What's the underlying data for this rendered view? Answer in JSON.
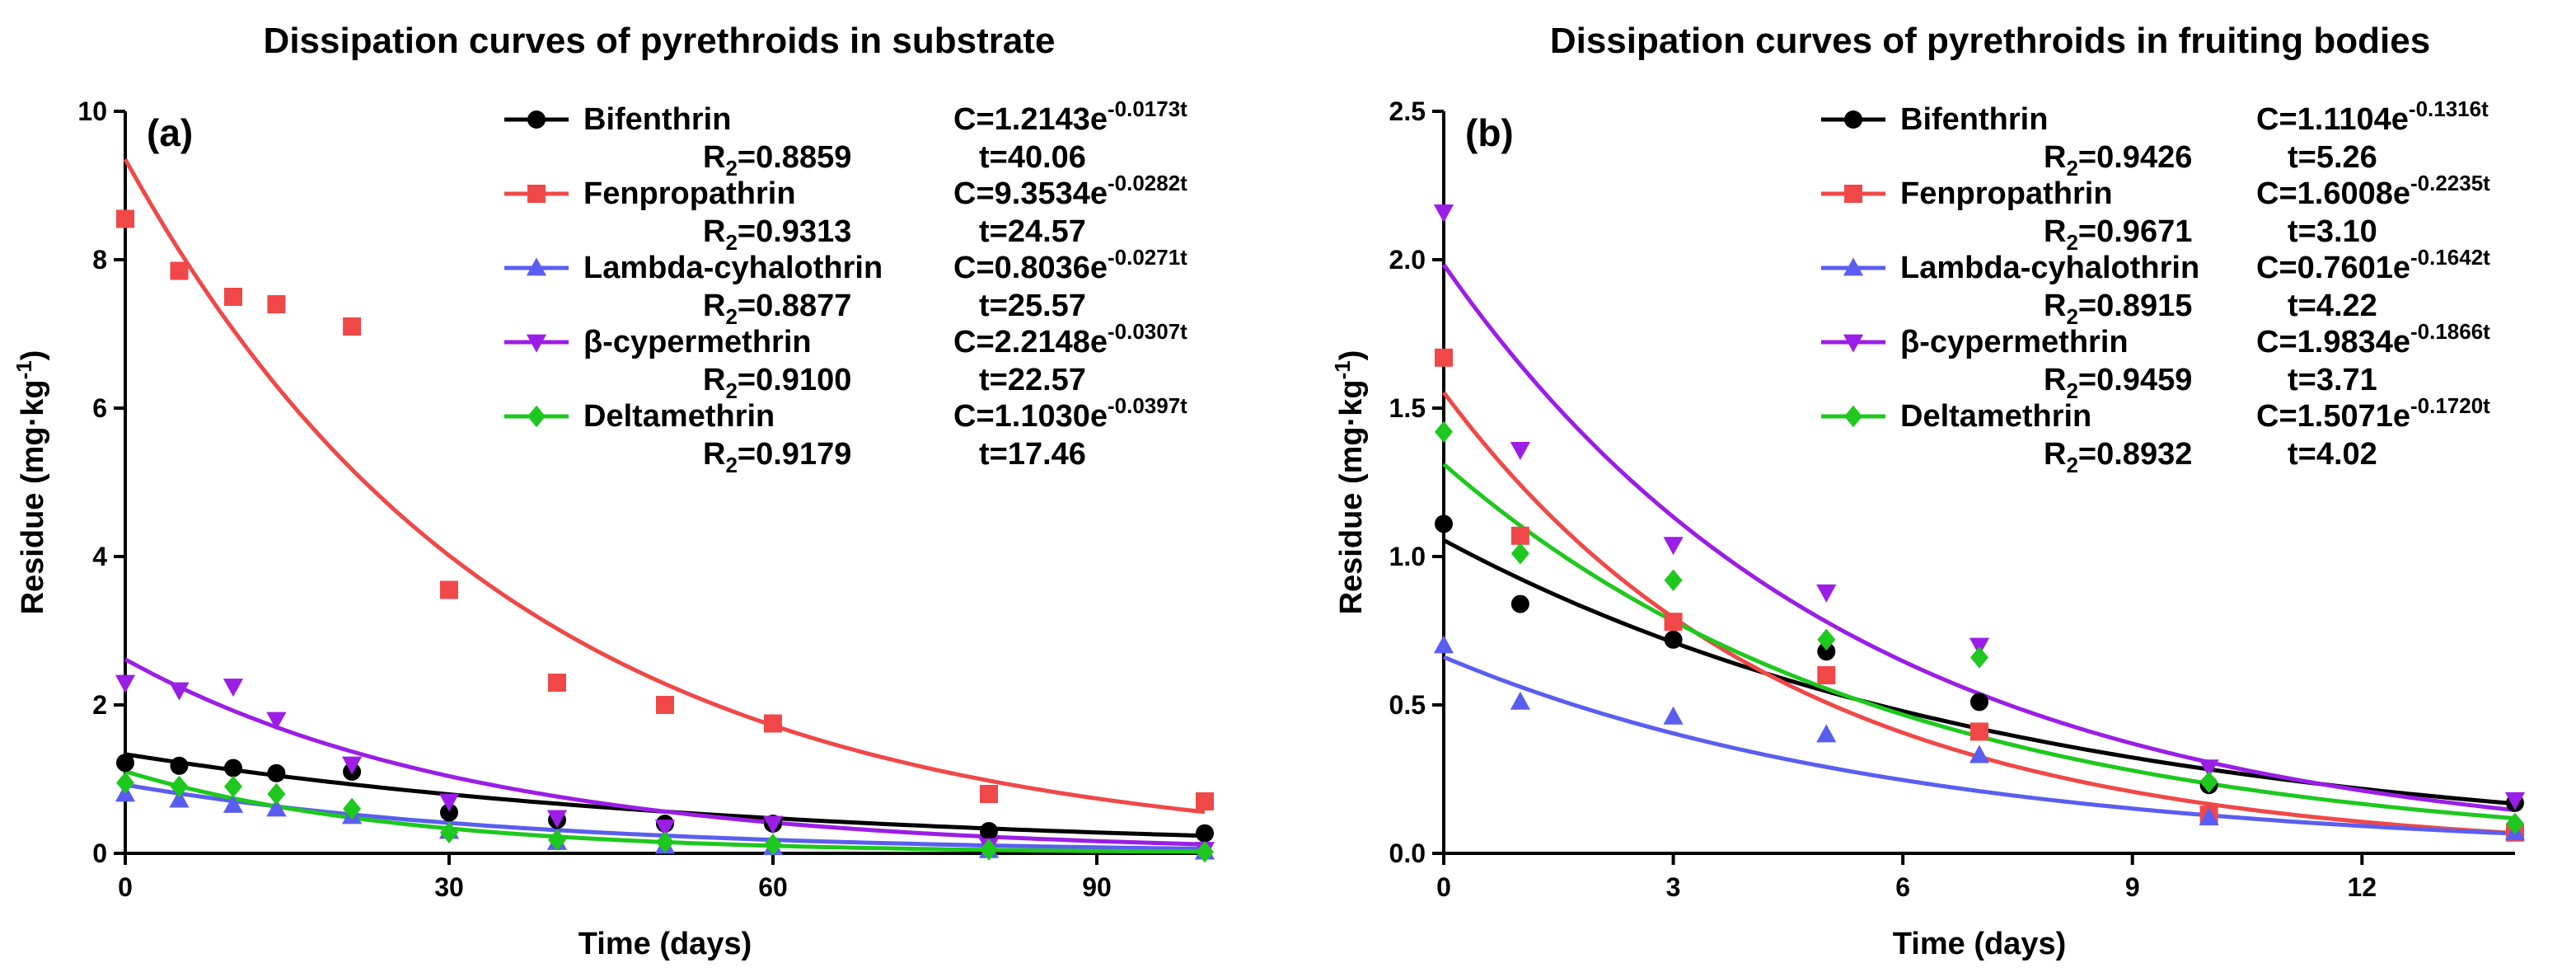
{
  "chart_data": [
    {
      "type": "scatter",
      "panel": "(a)",
      "title": "Dissipation curves of pyrethroids in substrate",
      "xlabel": "Time (days)",
      "ylabel_main": "Residue (mg·kg",
      "ylabel_sup": "-1",
      "ylabel_close": ")",
      "xlim": [
        0,
        100
      ],
      "ylim": [
        0,
        10
      ],
      "xticks": [
        0,
        30,
        60,
        90
      ],
      "yticks": [
        0,
        2,
        4,
        6,
        8,
        10
      ],
      "series": [
        {
          "name": "Bifenthrin",
          "color": "#000000",
          "marker": "circle",
          "eq_base": "C=1.2143e",
          "eq_exp": "-0.0173t",
          "r2_label": "R",
          "r2_sub": "2",
          "r2_value": "=0.8859",
          "half_life": "t=40.06",
          "c0": 1.2143,
          "k": 0.0173,
          "fit_scale": 1.1,
          "x": [
            0,
            5,
            10,
            14,
            21,
            30,
            40,
            50,
            60,
            80,
            100
          ],
          "y": [
            1.22,
            1.18,
            1.15,
            1.08,
            1.1,
            0.55,
            0.45,
            0.4,
            0.4,
            0.3,
            0.27
          ]
        },
        {
          "name": "Fenpropathrin",
          "color": "#f04848",
          "marker": "square",
          "eq_base": "C=9.3534e",
          "eq_exp": "-0.0282t",
          "r2_label": "R",
          "r2_sub": "2",
          "r2_value": "=0.9313",
          "half_life": "t=24.57",
          "c0": 9.3534,
          "k": 0.0282,
          "fit_scale": 1,
          "x": [
            0,
            5,
            10,
            14,
            21,
            30,
            40,
            50,
            60,
            80,
            100
          ],
          "y": [
            8.55,
            7.85,
            7.5,
            7.4,
            7.1,
            3.55,
            2.3,
            2.0,
            1.75,
            0.8,
            0.7
          ]
        },
        {
          "name": "Lambda-cyhalothrin",
          "color": "#5a5ef0",
          "marker": "triangle-up",
          "eq_base": "C=0.8036e",
          "eq_exp": "-0.0271t",
          "r2_label": "R",
          "r2_sub": "2",
          "r2_value": "=0.8877",
          "half_life": "t=25.57",
          "c0": 0.8036,
          "k": 0.0271,
          "fit_scale": 1.15,
          "x": [
            0,
            5,
            10,
            14,
            21,
            30,
            40,
            50,
            60,
            80,
            100
          ],
          "y": [
            0.8,
            0.72,
            0.65,
            0.6,
            0.5,
            0.3,
            0.15,
            0.1,
            0.08,
            0.04,
            0.02
          ]
        },
        {
          "name": "β-cypermethrin",
          "color": "#9b1ee6",
          "marker": "triangle-down",
          "eq_base": "C=2.2148e",
          "eq_exp": "-0.0307t",
          "r2_label": "R",
          "r2_sub": "2",
          "r2_value": "=0.9100",
          "half_life": "t=22.57",
          "c0": 2.2148,
          "k": 0.0307,
          "fit_scale": 1.18,
          "x": [
            0,
            5,
            10,
            14,
            21,
            30,
            40,
            50,
            60,
            80,
            100
          ],
          "y": [
            2.3,
            2.2,
            2.25,
            1.8,
            1.2,
            0.7,
            0.48,
            0.35,
            0.4,
            0.1,
            0.05
          ]
        },
        {
          "name": "Deltamethrin",
          "color": "#1ec81e",
          "marker": "diamond",
          "eq_base": "C=1.1030e",
          "eq_exp": "-0.0397t",
          "r2_label": "R",
          "r2_sub": "2",
          "r2_value": "=0.9179",
          "half_life": "t=17.46",
          "c0": 1.103,
          "k": 0.0397,
          "fit_scale": 1,
          "x": [
            0,
            5,
            10,
            14,
            21,
            30,
            40,
            50,
            60,
            80,
            100
          ],
          "y": [
            0.95,
            0.9,
            0.9,
            0.8,
            0.6,
            0.28,
            0.18,
            0.15,
            0.12,
            0.05,
            0.02
          ]
        }
      ]
    },
    {
      "type": "scatter",
      "panel": "(b)",
      "title": "Dissipation curves of pyrethroids in fruiting bodies",
      "xlabel": "Time (days)",
      "ylabel_main": "Residue (mg·kg",
      "ylabel_sup": "-1",
      "ylabel_close": ")",
      "xlim": [
        0,
        14
      ],
      "ylim": [
        0,
        2.5
      ],
      "xticks": [
        0,
        3,
        6,
        9,
        12
      ],
      "yticks": [
        0,
        0.5,
        1.0,
        1.5,
        2.0,
        2.5
      ],
      "ytick_labels": [
        "0.0",
        "0.5",
        "1.0",
        "1.5",
        "2.0",
        "2.5"
      ],
      "series": [
        {
          "name": "Bifenthrin",
          "color": "#000000",
          "marker": "circle",
          "eq_base": "C=1.1104e",
          "eq_exp": "-0.1316t",
          "r2_label": "R",
          "r2_sub": "2",
          "r2_value": "=0.9426",
          "half_life": "t=5.26",
          "c0": 1.1104,
          "k": 0.1316,
          "fit_scale": 0.95,
          "x": [
            0,
            1,
            3,
            5,
            7,
            10,
            14
          ],
          "y": [
            1.11,
            0.84,
            0.72,
            0.68,
            0.51,
            0.23,
            0.17
          ]
        },
        {
          "name": "Fenpropathrin",
          "color": "#f04848",
          "marker": "square",
          "eq_base": "C=1.6008e",
          "eq_exp": "-0.2235t",
          "r2_label": "R",
          "r2_sub": "2",
          "r2_value": "=0.9671",
          "half_life": "t=3.10",
          "c0": 1.6008,
          "k": 0.2235,
          "fit_scale": 0.97,
          "x": [
            0,
            1,
            3,
            5,
            7,
            10,
            14
          ],
          "y": [
            1.67,
            1.07,
            0.78,
            0.6,
            0.41,
            0.13,
            0.07
          ]
        },
        {
          "name": "Lambda-cyhalothrin",
          "color": "#5a5ef0",
          "marker": "triangle-up",
          "eq_base": "C=0.7601e",
          "eq_exp": "-0.1642t",
          "r2_label": "R",
          "r2_sub": "2",
          "r2_value": "=0.8915",
          "half_life": "t=4.22",
          "c0": 0.7601,
          "k": 0.1642,
          "fit_scale": 0.87,
          "x": [
            0,
            1,
            3,
            5,
            7,
            10,
            14
          ],
          "y": [
            0.7,
            0.51,
            0.46,
            0.4,
            0.33,
            0.12,
            0.07
          ]
        },
        {
          "name": "β-cypermethrin",
          "color": "#9b1ee6",
          "marker": "triangle-down",
          "eq_base": "C=1.9834e",
          "eq_exp": "-0.1866t",
          "r2_label": "R",
          "r2_sub": "2",
          "r2_value": "=0.9459",
          "half_life": "t=3.71",
          "c0": 1.9834,
          "k": 0.1866,
          "fit_scale": 1,
          "x": [
            0,
            1,
            3,
            5,
            7,
            10,
            14
          ],
          "y": [
            2.16,
            1.36,
            1.04,
            0.88,
            0.7,
            0.29,
            0.18
          ]
        },
        {
          "name": "Deltamethrin",
          "color": "#1ec81e",
          "marker": "diamond",
          "eq_base": "C=1.5071e",
          "eq_exp": "-0.1720t",
          "r2_label": "R",
          "r2_sub": "2",
          "r2_value": "=0.8932",
          "half_life": "t=4.02",
          "c0": 1.5071,
          "k": 0.172,
          "fit_scale": 0.87,
          "x": [
            0,
            1,
            3,
            5,
            7,
            10,
            14
          ],
          "y": [
            1.42,
            1.01,
            0.92,
            0.72,
            0.66,
            0.24,
            0.1
          ]
        }
      ]
    }
  ]
}
